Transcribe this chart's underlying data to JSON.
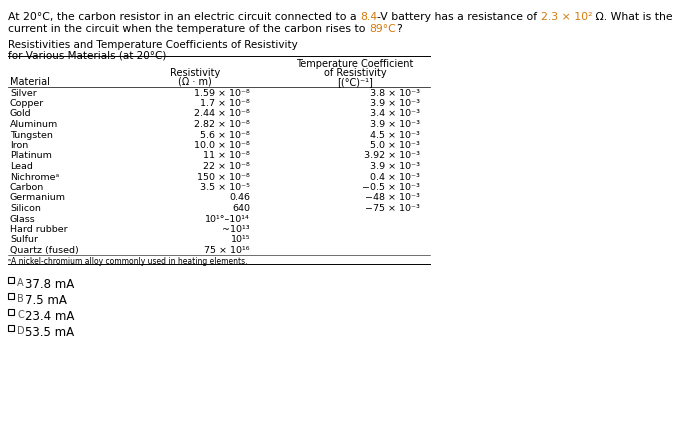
{
  "bg_color": "#d4d4d4",
  "title_seg1": "At 20°C, the carbon resistor in an electric circuit connected to a ",
  "title_seg2": "8.4",
  "title_seg3": "-V battery has a resistance of ",
  "title_seg4": "2.3 × 10²",
  "title_seg5": " Ω. What is the",
  "title_line2_seg1": "current in the circuit when the temperature of the carbon rises to ",
  "title_line2_seg2": "89°C",
  "title_line2_seg3": "?",
  "highlight_color": "#d4790a",
  "table_title_line1": "Resistivities and Temperature Coefficients of Resistivity",
  "table_title_line2": "for Various Materials (at 20°C)",
  "col1_header": "Material",
  "col2_header_line1": "Resistivity",
  "col2_header_line2": "(Ω · m)",
  "col3_header_line0": "Temperature Coefficient",
  "col3_header_line1": "of Resistivity",
  "col3_header_line2": "[(°C)⁻¹]",
  "rows": [
    [
      "Silver",
      "1.59 × 10⁻⁸",
      "3.8 × 10⁻³"
    ],
    [
      "Copper",
      "1.7 × 10⁻⁸",
      "3.9 × 10⁻³"
    ],
    [
      "Gold",
      "2.44 × 10⁻⁸",
      "3.4 × 10⁻³"
    ],
    [
      "Aluminum",
      "2.82 × 10⁻⁸",
      "3.9 × 10⁻³"
    ],
    [
      "Tungsten",
      "5.6 × 10⁻⁸",
      "4.5 × 10⁻³"
    ],
    [
      "Iron",
      "10.0 × 10⁻⁸",
      "5.0 × 10⁻³"
    ],
    [
      "Platinum",
      "11 × 10⁻⁸",
      "3.92 × 10⁻³"
    ],
    [
      "Lead",
      "22 × 10⁻⁸",
      "3.9 × 10⁻³"
    ],
    [
      "Nichromeᵃ",
      "150 × 10⁻⁸",
      "0.4 × 10⁻³"
    ],
    [
      "Carbon",
      "3.5 × 10⁻⁵",
      "−0.5 × 10⁻³"
    ],
    [
      "Germanium",
      "0.46",
      "−48 × 10⁻³"
    ],
    [
      "Silicon",
      "640",
      "−75 × 10⁻³"
    ],
    [
      "Glass",
      "10¹°–10¹⁴",
      ""
    ],
    [
      "Hard rubber",
      "~10¹³",
      ""
    ],
    [
      "Sulfur",
      "10¹⁵",
      ""
    ],
    [
      "Quartz (fused)",
      "75 × 10¹⁶",
      ""
    ]
  ],
  "footnote": "ᵃA nickel-chromium alloy commonly used in heating elements.",
  "answers": [
    [
      "A",
      "37.8 mA"
    ],
    [
      "B",
      "7.5 mA"
    ],
    [
      "C",
      "23.4 mA"
    ],
    [
      "D",
      "53.5 mA"
    ]
  ]
}
